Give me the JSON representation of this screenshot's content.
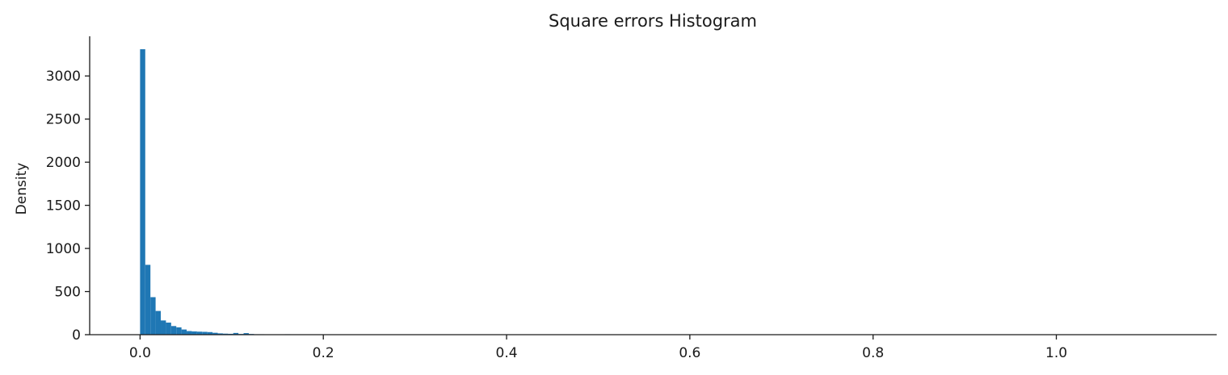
{
  "chart_data": {
    "type": "bar",
    "title": "Square errors Histogram",
    "xlabel": "",
    "ylabel": "Density",
    "xlim": [
      -0.055,
      1.175
    ],
    "ylim": [
      0,
      3460
    ],
    "xticks": [
      0.0,
      0.2,
      0.4,
      0.6,
      0.8,
      1.0
    ],
    "xtick_labels": [
      "0.0",
      "0.2",
      "0.4",
      "0.6",
      "0.8",
      "1.0"
    ],
    "yticks": [
      0,
      500,
      1000,
      1500,
      2000,
      2500,
      3000
    ],
    "ytick_labels": [
      "0",
      "500",
      "1000",
      "1500",
      "2000",
      "2500",
      "3000"
    ],
    "grid": false,
    "bar_color": "#1f77b4",
    "bin_start": 0.0,
    "bin_width": 0.00565,
    "values": [
      3310,
      810,
      435,
      275,
      165,
      140,
      100,
      85,
      60,
      42,
      38,
      35,
      33,
      30,
      22,
      15,
      12,
      10,
      20,
      8,
      18,
      8,
      5,
      5,
      4,
      3,
      3,
      2,
      5,
      3,
      2,
      2,
      1,
      1,
      1,
      1,
      1,
      1,
      1,
      1,
      1,
      1,
      1,
      1,
      1,
      1,
      1,
      1,
      1,
      1,
      1,
      1,
      1,
      1,
      1,
      1,
      1,
      1,
      1,
      1,
      1,
      1,
      1,
      1,
      1,
      1,
      1,
      1,
      1,
      1,
      1,
      1,
      1,
      1,
      1,
      1,
      1,
      1,
      1,
      1,
      1,
      1,
      1,
      1,
      1,
      1,
      1,
      1,
      1,
      1,
      1,
      1,
      1,
      1,
      1,
      1,
      1,
      1,
      1,
      1,
      1,
      1,
      1,
      1,
      1,
      1,
      1,
      1,
      1,
      1,
      1,
      1,
      1,
      1,
      1,
      1,
      1,
      1,
      1,
      1,
      1,
      1,
      1,
      1,
      1,
      1,
      1,
      1,
      1,
      1,
      1,
      1,
      1,
      1,
      1,
      1,
      1,
      1,
      1,
      1,
      1,
      1,
      1,
      1,
      1,
      1,
      1,
      1,
      1,
      1,
      1,
      1,
      1,
      1,
      1,
      1,
      1,
      1,
      1,
      1,
      1,
      1,
      1,
      1,
      1,
      1,
      1,
      1,
      1,
      1,
      1,
      1,
      1,
      1,
      1,
      1,
      1,
      1,
      1,
      1,
      1,
      1,
      1,
      1,
      1,
      1,
      1,
      1,
      1,
      1,
      1,
      1,
      1,
      1,
      1,
      1,
      1,
      1,
      1,
      1
    ]
  }
}
